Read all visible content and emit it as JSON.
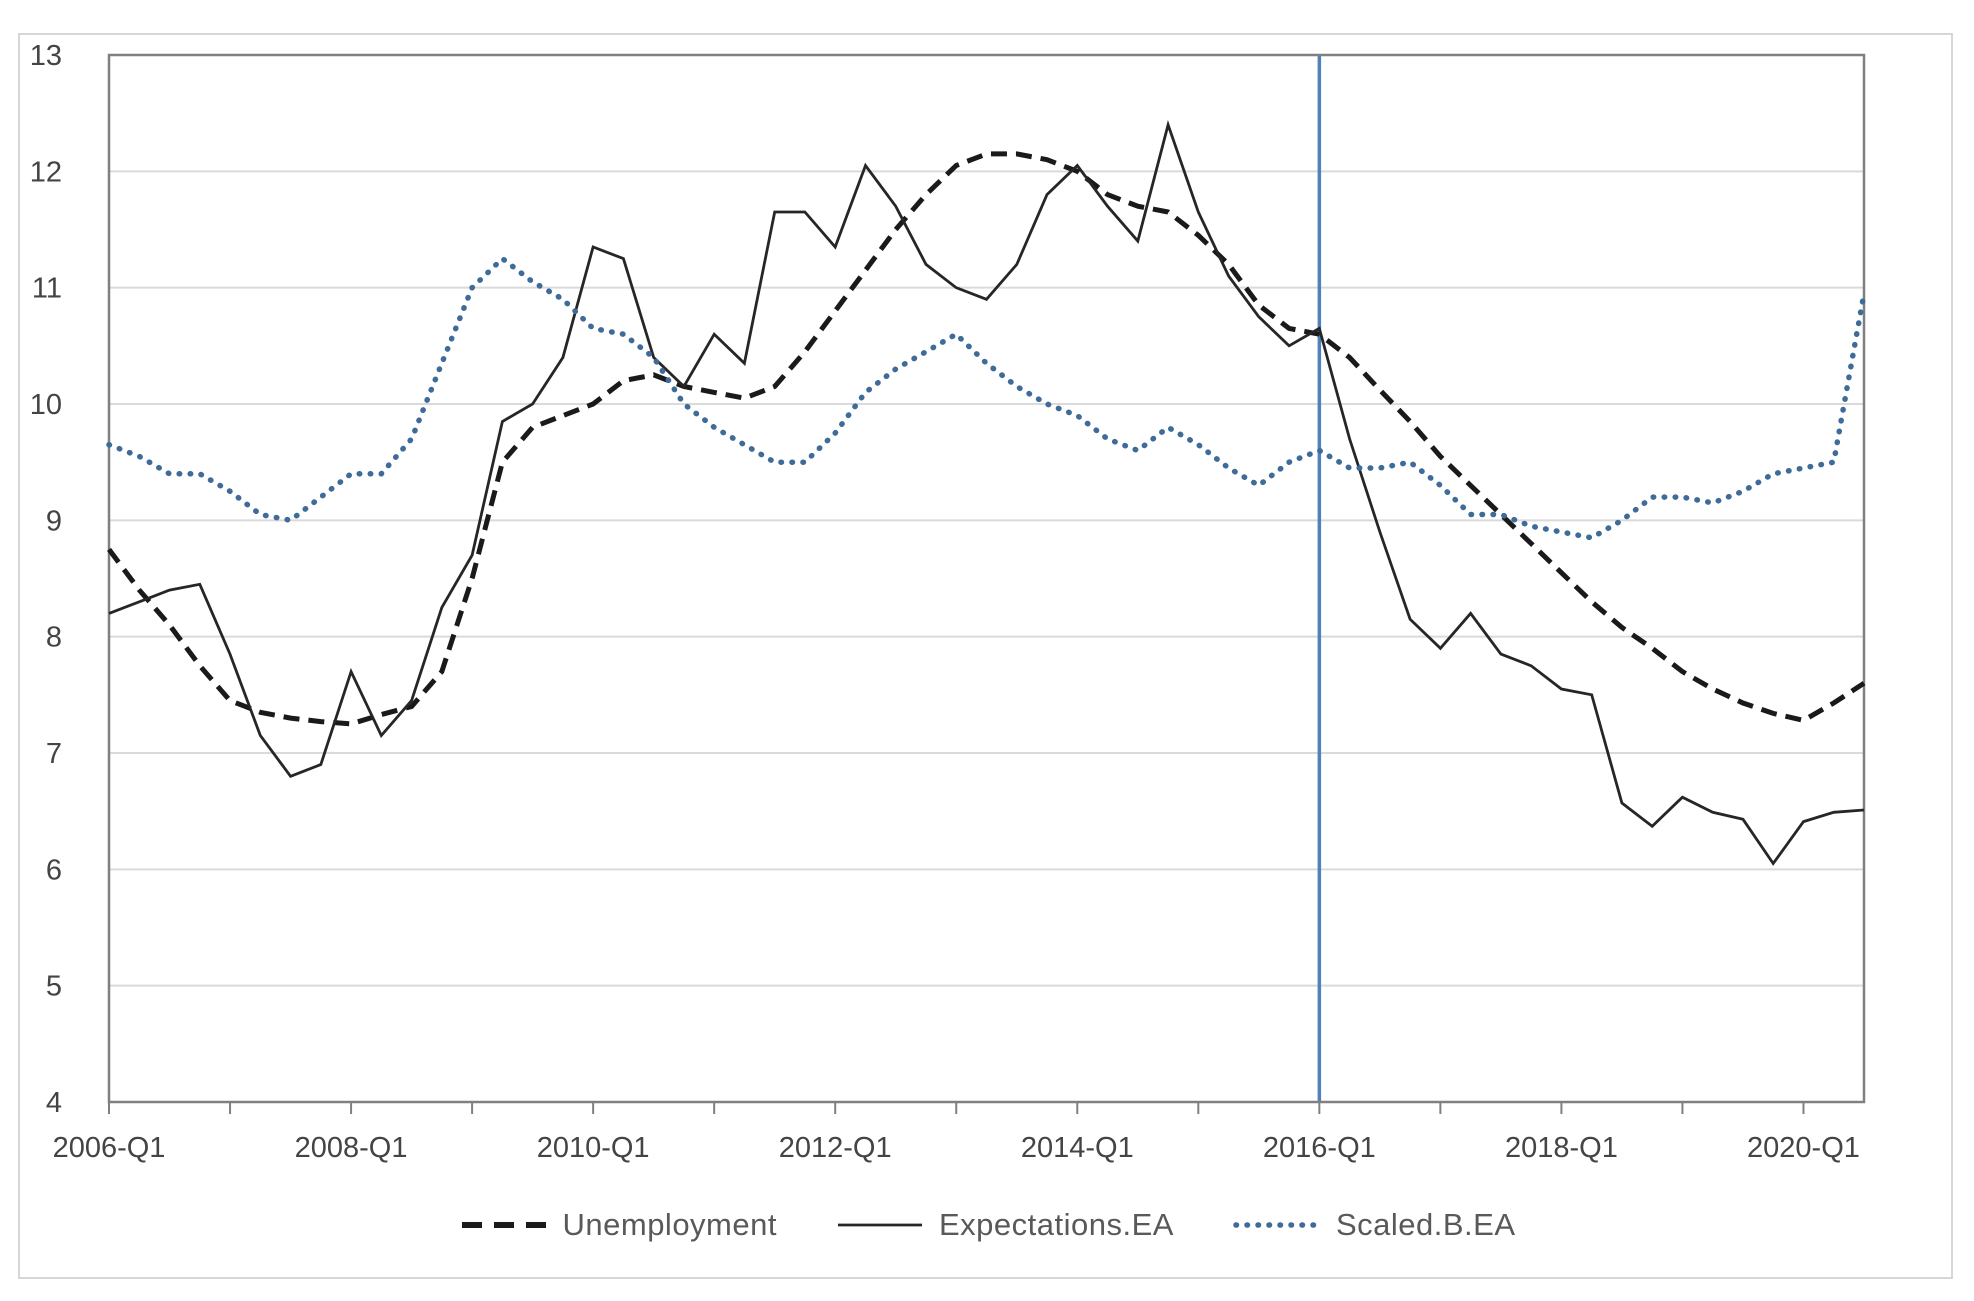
{
  "chart_data": {
    "type": "line",
    "title": "",
    "xlabel": "",
    "ylabel": "",
    "ylim": [
      4,
      13
    ],
    "y_ticks": [
      13,
      12,
      11,
      10,
      9,
      8,
      7,
      6,
      5,
      4
    ],
    "grid": "horizontal",
    "legend_position": "bottom",
    "x_unit": "quarter",
    "x_range": [
      "2006-Q1",
      "2020-Q3"
    ],
    "x_tick_labels": [
      {
        "label": "2006-Q1",
        "index": 0
      },
      {
        "label": "2008-Q1",
        "index": 8
      },
      {
        "label": "2010-Q1",
        "index": 16
      },
      {
        "label": "2012-Q1",
        "index": 24
      },
      {
        "label": "2014-Q1",
        "index": 32
      },
      {
        "label": "2016-Q1",
        "index": 40
      },
      {
        "label": "2018-Q1",
        "index": 48
      },
      {
        "label": "2020-Q1",
        "index": 56
      }
    ],
    "year_tick_indices": [
      0,
      4,
      8,
      12,
      16,
      20,
      24,
      28,
      32,
      36,
      40,
      44,
      48,
      52,
      56
    ],
    "vline": {
      "index": 40,
      "at": "2016-Q1",
      "color": "#4f81bd"
    },
    "series": [
      {
        "name": "Unemployment",
        "style": "dashed",
        "color": "#1a1a1a",
        "values": [
          8.75,
          8.4,
          8.1,
          7.75,
          7.45,
          7.35,
          7.3,
          7.27,
          7.25,
          7.33,
          7.4,
          7.7,
          8.5,
          9.5,
          9.8,
          9.9,
          10.0,
          10.2,
          10.25,
          10.15,
          10.1,
          10.05,
          10.15,
          10.45,
          10.8,
          11.15,
          11.5,
          11.8,
          12.05,
          12.15,
          12.15,
          12.1,
          12.0,
          11.8,
          11.7,
          11.65,
          11.45,
          11.2,
          10.85,
          10.65,
          10.6,
          10.4,
          10.12,
          9.85,
          9.55,
          9.3,
          9.05,
          8.8,
          8.55,
          8.3,
          8.08,
          7.9,
          7.7,
          7.55,
          7.43,
          7.34,
          7.28,
          7.43,
          7.6
        ]
      },
      {
        "name": "Expectations.EA",
        "style": "solid",
        "color": "#262626",
        "values": [
          8.2,
          8.3,
          8.4,
          8.45,
          7.85,
          7.15,
          6.8,
          6.9,
          7.7,
          7.15,
          7.45,
          8.25,
          8.7,
          9.85,
          10.0,
          10.4,
          11.35,
          11.25,
          10.4,
          10.15,
          10.6,
          10.35,
          11.65,
          11.65,
          11.35,
          12.05,
          11.7,
          11.2,
          11.0,
          10.9,
          11.2,
          11.8,
          12.05,
          11.7,
          11.4,
          12.4,
          11.65,
          11.1,
          10.75,
          10.5,
          10.65,
          9.7,
          8.9,
          8.15,
          7.9,
          8.2,
          7.85,
          7.75,
          7.55,
          7.5,
          6.57,
          6.37,
          6.62,
          6.49,
          6.43,
          6.05,
          6.41,
          6.49,
          6.51
        ]
      },
      {
        "name": "Scaled.B.EA",
        "style": "dotted",
        "color": "#3f6b99",
        "values": [
          9.65,
          9.55,
          9.4,
          9.4,
          9.25,
          9.05,
          9.0,
          9.2,
          9.4,
          9.4,
          9.7,
          10.35,
          11.0,
          11.25,
          11.05,
          10.9,
          10.65,
          10.6,
          10.4,
          10.0,
          9.8,
          9.65,
          9.5,
          9.5,
          9.75,
          10.1,
          10.3,
          10.45,
          10.6,
          10.35,
          10.15,
          10.0,
          9.9,
          9.7,
          9.6,
          9.8,
          9.65,
          9.45,
          9.3,
          9.5,
          9.6,
          9.45,
          9.45,
          9.5,
          9.3,
          9.05,
          9.05,
          8.95,
          8.9,
          8.85,
          9.0,
          9.2,
          9.2,
          9.15,
          9.25,
          9.4,
          9.45,
          9.5,
          10.95
        ]
      }
    ],
    "colors": {
      "gridline": "#dadada",
      "frame": "#808080",
      "tick_text": "#444444",
      "legend_text": "#595959",
      "vline": "#4f81bd",
      "outer_border": "#d8d5d5"
    }
  }
}
